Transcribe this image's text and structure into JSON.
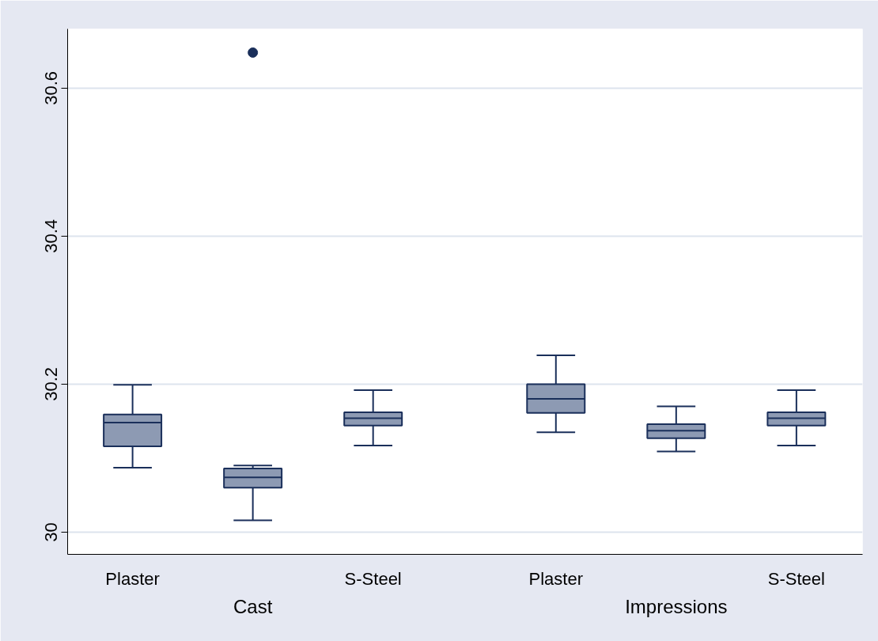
{
  "chart_data": {
    "type": "box",
    "categories": [
      "Plaster",
      null,
      "S-Steel",
      "Plaster",
      null,
      "S-Steel"
    ],
    "series": [
      {
        "color": "#8d9ab3",
        "boxes": [
          {
            "low": 30.087,
            "q1": 30.116,
            "median": 30.148,
            "q3": 30.159,
            "high": 30.199
          },
          {
            "low": 30.016,
            "q1": 30.06,
            "median": 30.074,
            "q3": 30.086,
            "high": 30.09,
            "outliers": [
              30.648
            ]
          },
          {
            "low": 30.117,
            "q1": 30.144,
            "median": 30.154,
            "q3": 30.162,
            "high": 30.192
          },
          {
            "low": 30.135,
            "q1": 30.161,
            "median": 30.18,
            "q3": 30.2,
            "high": 30.239
          },
          {
            "low": 30.109,
            "q1": 30.127,
            "median": 30.137,
            "q3": 30.146,
            "high": 30.17
          },
          {
            "low": 30.117,
            "q1": 30.144,
            "median": 30.154,
            "q3": 30.162,
            "high": 30.192
          }
        ]
      }
    ],
    "ylim": [
      29.97,
      30.68
    ],
    "yticks": [
      30,
      30.2,
      30.4,
      30.6
    ],
    "grid": "y",
    "annotations": [
      "Cast",
      "Impressions"
    ]
  }
}
